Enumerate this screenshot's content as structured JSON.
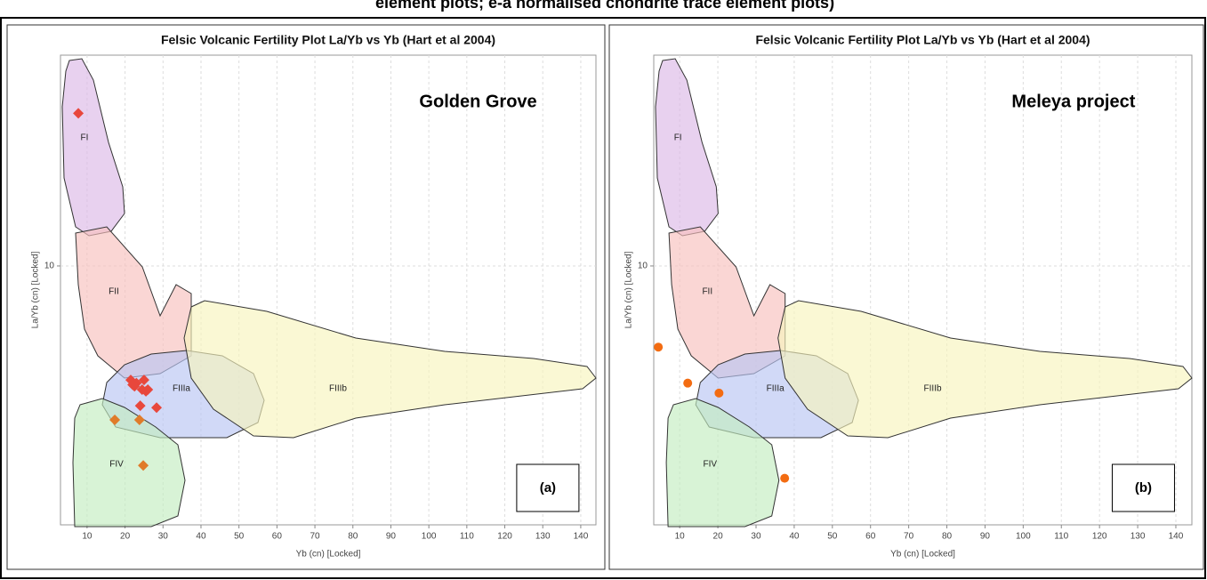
{
  "caption": "element plots; e-a normalised chondrite trace element plots)",
  "chart_data": [
    {
      "type": "scatter",
      "title": "Felsic Volcanic Fertility Plot La/Yb vs Yb (Hart et al 2004)",
      "xlabel": "Yb (cn) [Locked]",
      "ylabel": "La/Yb (cn) [Locked]",
      "annotation": "Golden Grove",
      "panel_label": "(a)",
      "xlim": [
        3,
        144
      ],
      "xticks": [
        10,
        20,
        30,
        40,
        50,
        60,
        70,
        80,
        90,
        100,
        110,
        120,
        130,
        140
      ],
      "ylim": [
        1.32,
        52
      ],
      "yticks": [
        10
      ],
      "ylog": true,
      "grid": true,
      "field_labels": [
        "FI",
        "FII",
        "FIIIa",
        "FIIIb",
        "FIV"
      ],
      "series": [
        {
          "color": "#e8473c",
          "marker": "diamond",
          "x": [
            7.7,
            21.5,
            23,
            25,
            22.5,
            24.5,
            26,
            25.5,
            22,
            24,
            28.3
          ],
          "values": [
            33,
            4.1,
            4.0,
            4.1,
            3.9,
            3.8,
            3.8,
            3.75,
            3.95,
            3.35,
            3.3
          ]
        },
        {
          "color": "#e07b2a",
          "marker": "diamond",
          "x": [
            17.3,
            23.8,
            24.8
          ],
          "values": [
            3.0,
            3.0,
            2.1
          ]
        }
      ]
    },
    {
      "type": "scatter",
      "title": "Felsic Volcanic Fertility Plot La/Yb vs Yb (Hart et al 2004)",
      "xlabel": "Yb (cn) [Locked]",
      "ylabel": "La/Yb (cn) [Locked]",
      "annotation": "Meleya project",
      "panel_label": "(b)",
      "xlim": [
        3.2,
        144.2
      ],
      "xticks": [
        10,
        20,
        30,
        40,
        50,
        60,
        70,
        80,
        90,
        100,
        110,
        120,
        130,
        140
      ],
      "ylim": [
        1.32,
        52
      ],
      "yticks": [
        10
      ],
      "ylog": true,
      "grid": true,
      "field_labels": [
        "FI",
        "FII",
        "FIIIa",
        "FIIIb",
        "FIV"
      ],
      "series": [
        {
          "color": "#f36c12",
          "marker": "circle",
          "x": [
            4.4,
            12.1,
            20.3,
            37.5
          ],
          "values": [
            5.3,
            4.0,
            3.7,
            1.9
          ]
        }
      ]
    }
  ]
}
